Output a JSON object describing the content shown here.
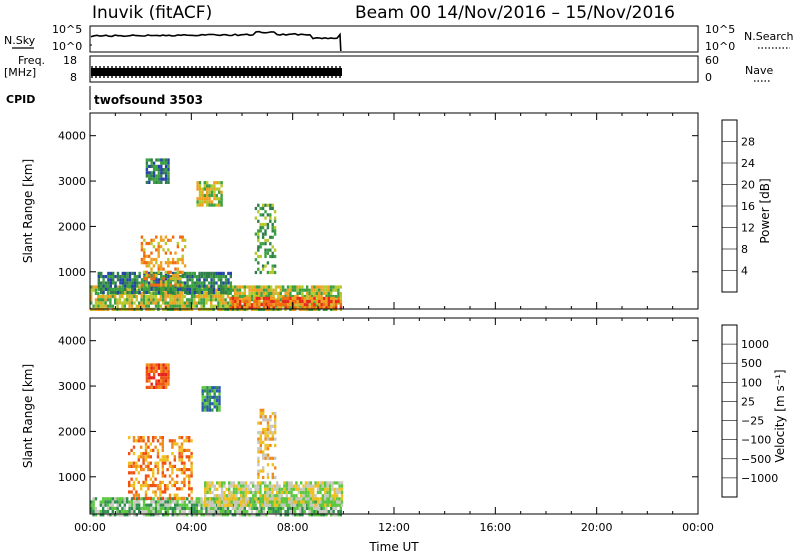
{
  "header": {
    "station": "Inuvik (fitACF)",
    "beam_date": "Beam 00  14/Nov/2016 – 15/Nov/2016"
  },
  "strips": {
    "nsky": {
      "label": "N.Sky",
      "tick_top": "10^5",
      "tick_bottom": "10^0",
      "right_tick_top": "10^5",
      "right_tick_bottom": "10^0",
      "right_label": "N.Search"
    },
    "freq": {
      "label_line1": "Freq.",
      "label_line2": "[MHz]",
      "tick_top": "18",
      "tick_bottom": "8",
      "right_tick_top": "60",
      "right_tick_bottom": "0",
      "right_label": "Nave"
    },
    "cpid": {
      "label": "CPID",
      "program": "twofsound 3503"
    }
  },
  "chart_data": [
    {
      "type": "heatmap",
      "panel": "power",
      "ylabel": "Slant Range [km]",
      "y_ticks": [
        "1000",
        "2000",
        "3000",
        "4000"
      ],
      "ylim": [
        180,
        4500
      ],
      "xlim_hours": [
        0,
        24
      ],
      "colorbar": {
        "label": "Power [dB]",
        "ticks": [
          "4",
          "8",
          "12",
          "16",
          "20",
          "24",
          "28"
        ],
        "colors": [
          "#0b1ee8",
          "#2444a8",
          "#2f7d4b",
          "#3aa040",
          "#b6c82c",
          "#f0a020",
          "#f06a10",
          "#e8281c"
        ]
      },
      "regions": [
        {
          "t0": 0.0,
          "t1": 9.9,
          "r0": 180,
          "r1": 700,
          "level": 4
        },
        {
          "t0": 5.5,
          "t1": 9.9,
          "r0": 180,
          "r1": 450,
          "level": 6
        },
        {
          "t0": 0.3,
          "t1": 5.6,
          "r0": 550,
          "r1": 1000,
          "level": 2
        },
        {
          "t0": 2.0,
          "t1": 3.8,
          "r0": 700,
          "r1": 1800,
          "level": 5
        },
        {
          "t0": 6.5,
          "t1": 7.3,
          "r0": 1000,
          "r1": 2500,
          "level": 3
        },
        {
          "t0": 4.2,
          "t1": 5.2,
          "r0": 2500,
          "r1": 3000,
          "level": 4
        },
        {
          "t0": 2.2,
          "t1": 3.1,
          "r0": 3000,
          "r1": 3500,
          "level": 2
        }
      ]
    },
    {
      "type": "heatmap",
      "panel": "velocity",
      "ylabel": "Slant Range [km]",
      "y_ticks": [
        "1000",
        "2000",
        "3000",
        "4000"
      ],
      "ylim": [
        180,
        4500
      ],
      "xlim_hours": [
        0,
        24
      ],
      "x_ticks": [
        "00:00",
        "04:00",
        "08:00",
        "12:00",
        "16:00",
        "20:00",
        "00:00"
      ],
      "xlabel": "Time UT",
      "colorbar": {
        "label": "Velocity [m s⁻¹]",
        "ticks": [
          "1000",
          "500",
          "100",
          "25",
          "−25",
          "−100",
          "−500",
          "−1000"
        ],
        "colors": [
          "#1c34d8",
          "#2a58b0",
          "#2e8e4e",
          "#5cc840",
          "#c8c8c0",
          "#f0c020",
          "#f08a18",
          "#f05010",
          "#e8201c"
        ]
      },
      "regions": [
        {
          "t0": 0.0,
          "t1": 9.9,
          "r0": 180,
          "r1": 550,
          "level": 3
        },
        {
          "t0": 4.5,
          "t1": 9.9,
          "r0": 400,
          "r1": 900,
          "level": 4
        },
        {
          "t0": 1.5,
          "t1": 4.0,
          "r0": 550,
          "r1": 1900,
          "level": 6
        },
        {
          "t0": 6.6,
          "t1": 7.3,
          "r0": 1000,
          "r1": 2500,
          "level": 5
        },
        {
          "t0": 4.4,
          "t1": 5.1,
          "r0": 2500,
          "r1": 3000,
          "level": 2
        },
        {
          "t0": 2.2,
          "t1": 3.1,
          "r0": 3000,
          "r1": 3500,
          "level": 7
        }
      ]
    }
  ]
}
